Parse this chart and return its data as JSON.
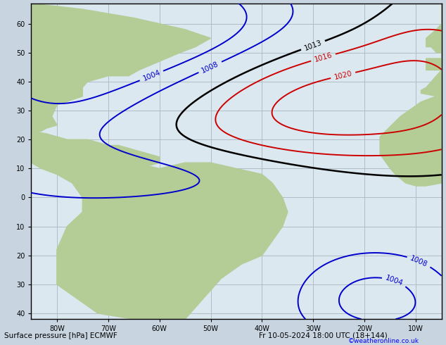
{
  "title_left": "Surface pressure [hPa] ECMWF",
  "title_right": "Fr 10-05-2024 18:00 UTC (18+144)",
  "credit": "©weatheronline.co.uk",
  "bg_color": "#c8d4e0",
  "land_color": "#b4cc96",
  "ocean_color": "#dce8f0",
  "grid_color": "#b0bcc8",
  "figsize": [
    6.34,
    4.9
  ],
  "dpi": 100,
  "lon_min": -85,
  "lon_max": -5,
  "lat_min": -42,
  "lat_max": 67,
  "xticks": [
    -80,
    -70,
    -60,
    -50,
    -40,
    -30,
    -20,
    -10
  ],
  "yticks": [
    -40,
    -30,
    -20,
    -10,
    0,
    10,
    20,
    30,
    40,
    50,
    60
  ]
}
